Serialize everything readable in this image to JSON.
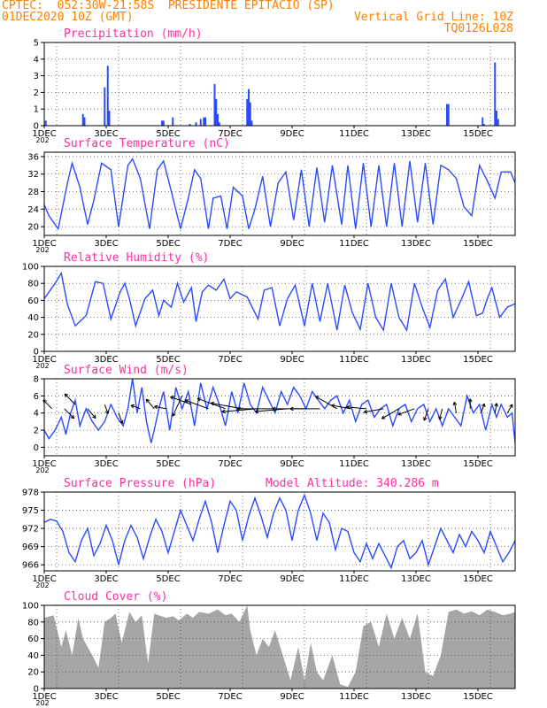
{
  "header": {
    "line1_left": "CPTEC:  052:30W-21:58S  PRESIDENTE EPITACIO (SP)",
    "line2_left": "01DEC2020 10Z (GMT)",
    "line2_right": "Vertical Grid Line: 10Z",
    "line3_right": "TQ0126L028"
  },
  "colors": {
    "header": "#ff7f00",
    "title": "#ff2f9f",
    "line": "#2b4bff",
    "cloud": "#a6a6a6",
    "wind_arrow": "#000000"
  },
  "x_axis": {
    "labels": [
      "1DEC",
      "3DEC",
      "5DEC",
      "7DEC",
      "9DEC",
      "11DEC",
      "13DEC",
      "15DEC"
    ],
    "range_days": [
      1,
      16.2
    ],
    "under_label": "202"
  },
  "chart_data": [
    {
      "type": "bar",
      "title": "Precipitation (mm/h)",
      "ylim": [
        0,
        5
      ],
      "yticks": [
        "0",
        "1",
        "2",
        "3",
        "4",
        "5"
      ],
      "x": [
        1.05,
        2.25,
        2.3,
        2.95,
        3.05,
        3.1,
        4.8,
        4.85,
        5.15,
        5.7,
        5.9,
        6.05,
        6.15,
        6.2,
        6.5,
        6.55,
        6.6,
        6.65,
        7.55,
        7.6,
        7.65,
        7.7,
        14.0,
        14.05,
        15.15,
        15.2,
        15.55,
        15.6,
        15.65
      ],
      "values": [
        0.3,
        0.7,
        0.5,
        2.3,
        3.6,
        0.9,
        0.3,
        0.3,
        0.5,
        0.1,
        0.2,
        0.4,
        0.5,
        0.5,
        2.5,
        1.6,
        0.7,
        0.2,
        1.6,
        2.2,
        1.4,
        0.3,
        1.3,
        1.3,
        0.5,
        0.1,
        3.8,
        0.9,
        0.4
      ]
    },
    {
      "type": "line",
      "title": "Surface Temperature (nC)",
      "ylim": [
        18,
        37
      ],
      "yticks": [
        "20",
        "24",
        "28",
        "32",
        "36"
      ],
      "x": [
        1.0,
        1.15,
        1.45,
        1.75,
        1.9,
        2.15,
        2.4,
        2.6,
        2.85,
        3.15,
        3.4,
        3.7,
        3.85,
        4.1,
        4.4,
        4.65,
        4.85,
        5.05,
        5.4,
        5.65,
        5.85,
        6.05,
        6.3,
        6.45,
        6.7,
        6.9,
        7.1,
        7.4,
        7.6,
        7.8,
        8.05,
        8.3,
        8.55,
        8.8,
        9.05,
        9.3,
        9.55,
        9.8,
        10.05,
        10.3,
        10.6,
        10.8,
        11.05,
        11.3,
        11.55,
        11.8,
        12.05,
        12.3,
        12.55,
        12.8,
        13.05,
        13.3,
        13.55,
        13.8,
        14.05,
        14.3,
        14.55,
        14.8,
        15.05,
        15.3,
        15.55,
        15.75,
        16.05,
        16.2
      ],
      "values": [
        25.0,
        22.5,
        19.5,
        30.0,
        34.5,
        29.0,
        20.5,
        26.0,
        34.5,
        33.0,
        20.0,
        34.0,
        35.5,
        31.0,
        19.5,
        33.0,
        35.0,
        29.5,
        19.5,
        26.5,
        33.0,
        31.0,
        19.5,
        26.5,
        27.0,
        19.5,
        29.0,
        27.0,
        19.5,
        24.0,
        31.5,
        20.0,
        30.0,
        32.5,
        21.5,
        33.0,
        20.0,
        33.5,
        21.0,
        34.0,
        20.5,
        34.0,
        19.5,
        34.5,
        20.0,
        34.0,
        20.0,
        34.5,
        20.0,
        35.0,
        21.0,
        34.5,
        20.5,
        34.0,
        33.0,
        31.0,
        24.5,
        22.5,
        34.0,
        30.5,
        26.5,
        32.5,
        32.5,
        30.0
      ]
    },
    {
      "type": "line",
      "title": "Relative Humidity (%)",
      "ylim": [
        0,
        100
      ],
      "yticks": [
        "0",
        "20",
        "40",
        "60",
        "80",
        "100"
      ],
      "x": [
        1.0,
        1.35,
        1.55,
        1.75,
        2.0,
        2.35,
        2.65,
        2.9,
        3.15,
        3.45,
        3.6,
        3.75,
        3.95,
        4.25,
        4.5,
        4.7,
        4.85,
        5.1,
        5.3,
        5.5,
        5.75,
        5.9,
        6.1,
        6.3,
        6.55,
        6.8,
        7.0,
        7.2,
        7.55,
        7.9,
        8.1,
        8.35,
        8.6,
        8.85,
        9.1,
        9.4,
        9.65,
        9.9,
        10.15,
        10.45,
        10.7,
        10.95,
        11.2,
        11.45,
        11.7,
        11.95,
        12.2,
        12.45,
        12.7,
        12.95,
        13.2,
        13.45,
        13.7,
        13.95,
        14.2,
        14.45,
        14.7,
        14.95,
        15.15,
        15.3,
        15.45,
        15.7,
        15.95,
        16.2
      ],
      "values": [
        62.0,
        80.0,
        92.0,
        55.0,
        30.0,
        42.0,
        82.0,
        80.0,
        38.0,
        70.0,
        80.0,
        62.0,
        30.0,
        62.0,
        72.0,
        42.0,
        60.0,
        52.0,
        80.0,
        58.0,
        75.0,
        35.0,
        70.0,
        78.0,
        72.0,
        85.0,
        62.0,
        70.0,
        64.0,
        38.0,
        72.0,
        75.0,
        30.0,
        62.0,
        78.0,
        30.0,
        80.0,
        35.0,
        80.0,
        25.0,
        78.0,
        45.0,
        26.0,
        80.0,
        40.0,
        25.0,
        80.0,
        40.0,
        25.0,
        80.0,
        52.0,
        28.0,
        72.0,
        85.0,
        40.0,
        60.0,
        82.0,
        42.0,
        45.0,
        62.0,
        75.0,
        40.0,
        52.0,
        56.0
      ]
    },
    {
      "type": "line",
      "title": "Surface Wind (m/s)",
      "ylim": [
        -1,
        8
      ],
      "yticks": [
        "0",
        "2",
        "4",
        "6",
        "8"
      ],
      "x": [
        1.0,
        1.15,
        1.35,
        1.55,
        1.7,
        1.85,
        2.0,
        2.15,
        2.35,
        2.55,
        2.75,
        2.95,
        3.15,
        3.35,
        3.55,
        3.7,
        3.85,
        4.0,
        4.15,
        4.3,
        4.45,
        4.55,
        4.7,
        4.85,
        5.05,
        5.25,
        5.45,
        5.65,
        5.85,
        6.05,
        6.25,
        6.45,
        6.65,
        6.85,
        7.05,
        7.25,
        7.45,
        7.65,
        7.85,
        8.05,
        8.25,
        8.45,
        8.65,
        8.85,
        9.05,
        9.25,
        9.45,
        9.65,
        9.85,
        10.05,
        10.25,
        10.45,
        10.65,
        10.85,
        11.05,
        11.25,
        11.45,
        11.65,
        11.85,
        12.05,
        12.25,
        12.45,
        12.65,
        12.85,
        13.05,
        13.25,
        13.45,
        13.65,
        13.85,
        14.05,
        14.25,
        14.45,
        14.65,
        14.85,
        15.05,
        15.25,
        15.45,
        15.6,
        15.75,
        15.95,
        16.1,
        16.2
      ],
      "values": [
        2.0,
        1.0,
        2.0,
        3.5,
        1.5,
        4.0,
        5.5,
        2.5,
        4.5,
        3.0,
        2.0,
        3.0,
        5.0,
        3.5,
        2.5,
        4.5,
        8.0,
        4.0,
        7.0,
        3.0,
        0.5,
        2.0,
        4.5,
        6.5,
        2.0,
        7.0,
        4.5,
        6.5,
        2.5,
        7.5,
        4.5,
        7.0,
        5.0,
        2.5,
        6.5,
        4.0,
        7.5,
        5.0,
        4.0,
        7.0,
        5.5,
        4.0,
        6.5,
        5.0,
        7.0,
        6.0,
        4.5,
        6.5,
        5.5,
        4.5,
        5.5,
        6.0,
        4.0,
        5.5,
        3.0,
        5.0,
        5.5,
        3.5,
        4.5,
        5.0,
        2.5,
        4.5,
        5.0,
        3.0,
        4.5,
        5.0,
        3.0,
        4.5,
        2.5,
        4.5,
        3.5,
        2.5,
        6.0,
        4.0,
        5.0,
        2.0,
        5.0,
        3.5,
        5.0,
        3.5,
        4.0,
        0.5
      ]
    },
    {
      "type": "line",
      "title": "Surface Pressure (hPa)",
      "annotation": "Model Altitude: 340.286 m",
      "ylim": [
        965,
        978
      ],
      "yticks": [
        "966",
        "969",
        "972",
        "975",
        "978"
      ],
      "x": [
        1.0,
        1.2,
        1.4,
        1.6,
        1.8,
        2.0,
        2.2,
        2.4,
        2.6,
        2.8,
        3.0,
        3.2,
        3.4,
        3.6,
        3.8,
        4.0,
        4.2,
        4.4,
        4.6,
        4.8,
        5.0,
        5.2,
        5.4,
        5.6,
        5.8,
        6.0,
        6.2,
        6.4,
        6.6,
        6.8,
        7.0,
        7.2,
        7.4,
        7.6,
        7.8,
        8.0,
        8.2,
        8.4,
        8.6,
        8.8,
        9.0,
        9.2,
        9.4,
        9.6,
        9.8,
        10.0,
        10.2,
        10.4,
        10.6,
        10.8,
        11.0,
        11.2,
        11.4,
        11.6,
        11.8,
        12.0,
        12.2,
        12.4,
        12.6,
        12.8,
        13.0,
        13.2,
        13.4,
        13.6,
        13.8,
        14.0,
        14.2,
        14.4,
        14.6,
        14.8,
        15.0,
        15.2,
        15.4,
        15.6,
        15.8,
        16.0,
        16.2
      ],
      "values": [
        973.0,
        973.5,
        973.2,
        971.5,
        968.0,
        966.5,
        970.0,
        972.0,
        967.5,
        969.5,
        972.5,
        970.0,
        966.0,
        970.0,
        972.5,
        970.5,
        967.0,
        970.5,
        973.5,
        971.5,
        968.0,
        971.5,
        975.0,
        972.5,
        970.0,
        973.5,
        976.5,
        973.0,
        968.0,
        972.5,
        976.5,
        975.0,
        970.0,
        974.0,
        977.0,
        974.0,
        970.5,
        974.5,
        977.0,
        975.0,
        970.0,
        975.0,
        977.5,
        974.5,
        970.0,
        974.5,
        973.0,
        968.5,
        972.0,
        971.5,
        968.0,
        966.5,
        969.5,
        967.0,
        969.5,
        967.5,
        965.5,
        969.0,
        970.0,
        967.0,
        968.0,
        970.0,
        966.0,
        969.0,
        972.0,
        970.0,
        968.0,
        971.0,
        969.0,
        971.5,
        970.0,
        968.0,
        971.5,
        969.0,
        966.5,
        968.0,
        970.0
      ]
    },
    {
      "type": "area",
      "title": "Cloud Cover (%)",
      "ylim": [
        0,
        100
      ],
      "yticks": [
        "0",
        "20",
        "40",
        "60",
        "80",
        "100"
      ],
      "x": [
        1.0,
        1.3,
        1.55,
        1.7,
        1.9,
        2.1,
        2.25,
        2.55,
        2.75,
        2.95,
        3.15,
        3.3,
        3.5,
        3.75,
        3.95,
        4.15,
        4.35,
        4.55,
        4.7,
        4.95,
        5.15,
        5.35,
        5.6,
        5.8,
        6.0,
        6.3,
        6.6,
        6.85,
        7.05,
        7.3,
        7.55,
        7.65,
        7.85,
        8.05,
        8.25,
        8.45,
        8.7,
        8.95,
        9.2,
        9.4,
        9.6,
        9.8,
        10.0,
        10.3,
        10.55,
        10.8,
        11.05,
        11.3,
        11.55,
        11.8,
        12.05,
        12.3,
        12.55,
        12.8,
        13.05,
        13.3,
        13.55,
        13.8,
        14.05,
        14.3,
        14.55,
        14.8,
        15.05,
        15.3,
        15.55,
        15.8,
        16.05,
        16.2
      ],
      "values": [
        85.0,
        88.0,
        50.0,
        70.0,
        40.0,
        85.0,
        60.0,
        40.0,
        25.0,
        80.0,
        85.0,
        90.0,
        55.0,
        92.0,
        80.0,
        88.0,
        30.0,
        90.0,
        88.0,
        85.0,
        87.0,
        82.0,
        90.0,
        85.0,
        92.0,
        90.0,
        95.0,
        88.0,
        90.0,
        80.0,
        100.0,
        70.0,
        40.0,
        60.0,
        50.0,
        70.0,
        40.0,
        10.0,
        50.0,
        10.0,
        55.0,
        20.0,
        10.0,
        40.0,
        5.0,
        2.0,
        20.0,
        75.0,
        80.0,
        50.0,
        90.0,
        60.0,
        85.0,
        60.0,
        90.0,
        20.0,
        15.0,
        40.0,
        92.0,
        95.0,
        90.0,
        93.0,
        88.0,
        95.0,
        92.0,
        88.0,
        90.0,
        92.0
      ]
    }
  ],
  "wind_arrows": {
    "x": [
      1.25,
      1.65,
      2.0,
      2.4,
      2.95,
      3.4,
      4.1,
      4.55,
      4.95,
      5.45,
      5.75,
      6.3,
      6.85,
      7.4,
      7.85,
      8.35,
      8.85,
      9.4,
      9.9,
      10.45,
      10.9,
      11.4,
      11.95,
      12.45,
      12.95,
      13.4,
      13.85,
      14.3,
      14.75,
      15.1,
      15.55,
      15.95
    ],
    "y": [
      4.5,
      4.5,
      5.0,
      4.5,
      5.0,
      4.0,
      4.5,
      4.5,
      4.5,
      6.0,
      5.0,
      4.5,
      4.5,
      4.5,
      4.5,
      4.5,
      4.5,
      4.5,
      4.5,
      4.5,
      4.5,
      4.5,
      4.5,
      4.5,
      4.5,
      4.5,
      4.5,
      4.0,
      4.5,
      4.0,
      4.0,
      4.0
    ],
    "dir_deg": [
      225,
      45,
      225,
      50,
      70,
      70,
      200,
      230,
      190,
      115,
      200,
      200,
      200,
      190,
      175,
      180,
      175,
      180,
      180,
      210,
      190,
      185,
      170,
      150,
      160,
      110,
      105,
      260,
      270,
      290,
      280,
      300
    ],
    "len": [
      1.0,
      1.1,
      1.2,
      1.0,
      0.8,
      0.9,
      0.8,
      1.0,
      1.0,
      1.8,
      1.8,
      2.0,
      2.4,
      2.6,
      2.8,
      2.8,
      2.6,
      2.6,
      2.4,
      2.0,
      1.6,
      1.6,
      1.6,
      1.6,
      1.4,
      1.0,
      0.9,
      0.9,
      0.8,
      0.8,
      0.8,
      0.8
    ]
  }
}
